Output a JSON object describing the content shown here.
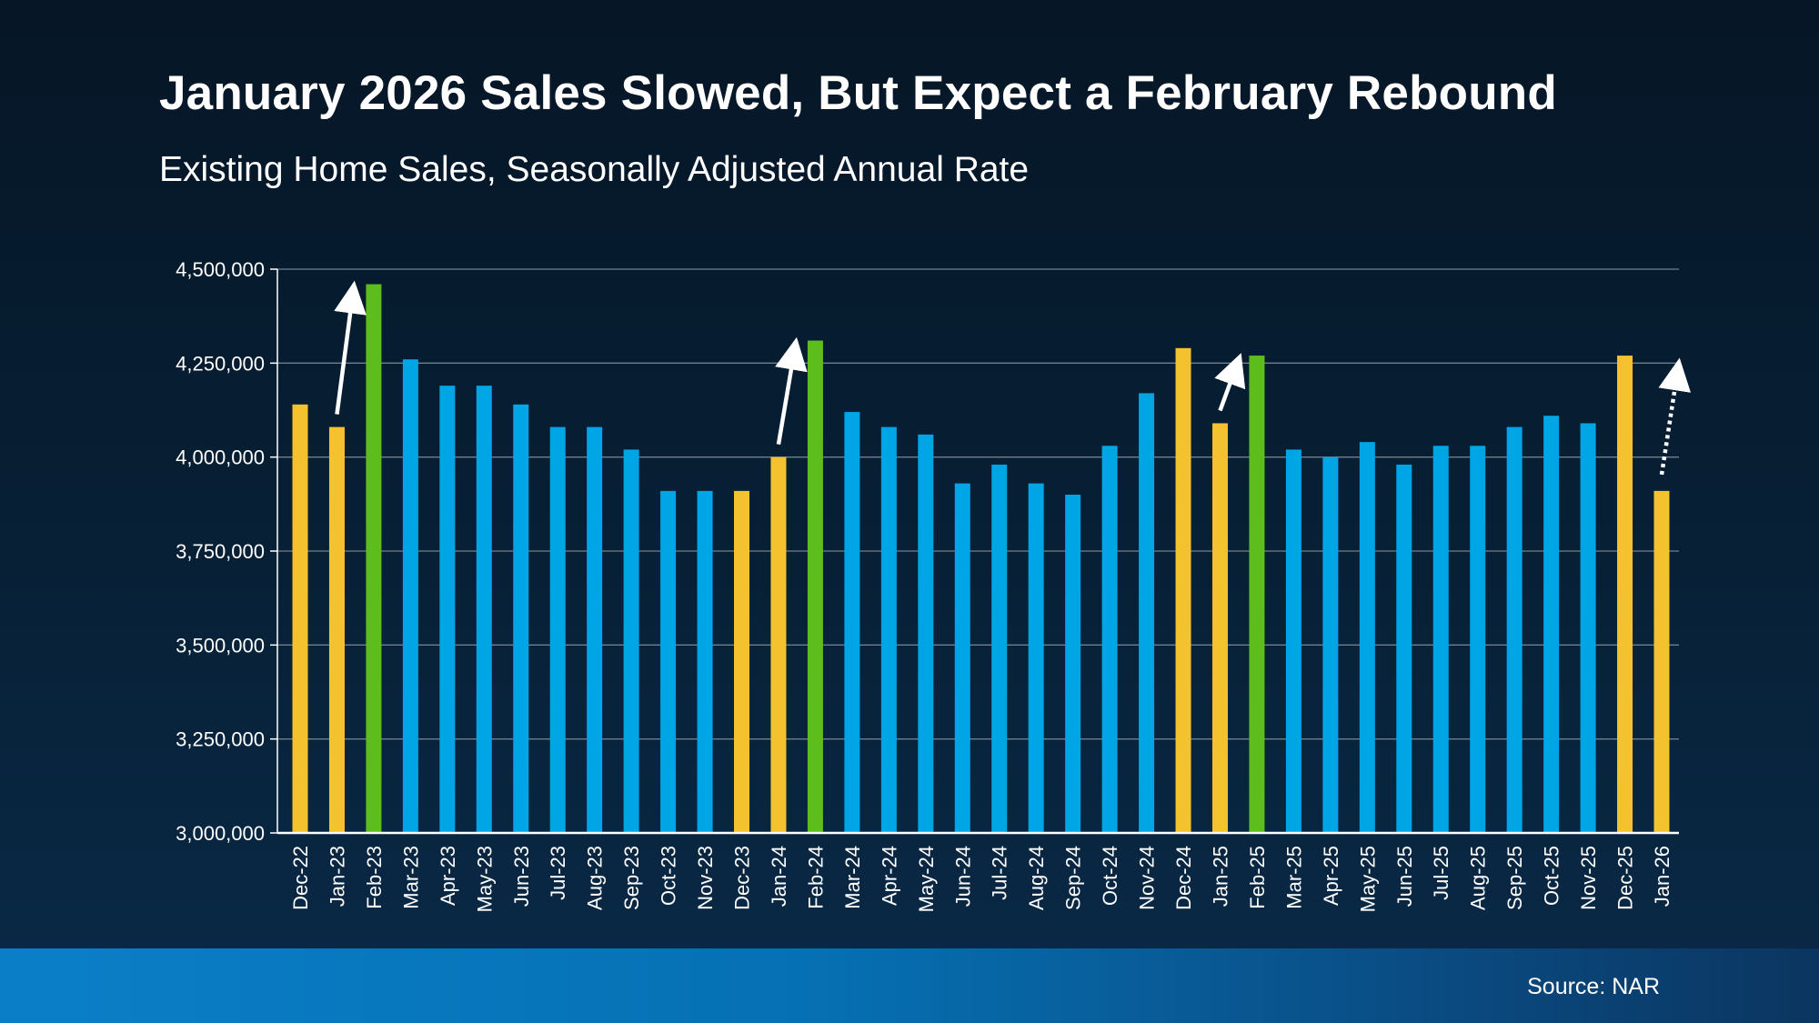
{
  "chart_data": {
    "type": "bar",
    "title": "January 2026 Sales Slowed, But Expect a February Rebound",
    "subtitle": "Existing Home Sales, Seasonally Adjusted Annual Rate",
    "xlabel": "",
    "ylabel": "",
    "ylim": [
      3000000,
      4500000
    ],
    "yticks": [
      3000000,
      3250000,
      3500000,
      3750000,
      4000000,
      4250000,
      4500000
    ],
    "ytick_labels": [
      "3,000,000",
      "3,250,000",
      "3,500,000",
      "3,750,000",
      "4,000,000",
      "4,250,000",
      "4,500,000"
    ],
    "grid": true,
    "categories": [
      "Dec-22",
      "Jan-23",
      "Feb-23",
      "Mar-23",
      "Apr-23",
      "May-23",
      "Jun-23",
      "Jul-23",
      "Aug-23",
      "Sep-23",
      "Oct-23",
      "Nov-23",
      "Dec-23",
      "Jan-24",
      "Feb-24",
      "Mar-24",
      "Apr-24",
      "May-24",
      "Jun-24",
      "Jul-24",
      "Aug-24",
      "Sep-24",
      "Oct-24",
      "Nov-24",
      "Dec-24",
      "Jan-25",
      "Feb-25",
      "Mar-25",
      "Apr-25",
      "May-25",
      "Jun-25",
      "Jul-25",
      "Aug-25",
      "Sep-25",
      "Oct-25",
      "Nov-25",
      "Dec-25",
      "Jan-26"
    ],
    "values": [
      4140000,
      4080000,
      4460000,
      4260000,
      4190000,
      4190000,
      4140000,
      4080000,
      4080000,
      4020000,
      3910000,
      3910000,
      3910000,
      4000000,
      4310000,
      4120000,
      4080000,
      4060000,
      3930000,
      3980000,
      3930000,
      3900000,
      4030000,
      4170000,
      4290000,
      4090000,
      4270000,
      4020000,
      4000000,
      4040000,
      3980000,
      4030000,
      4030000,
      4080000,
      4110000,
      4090000,
      4270000,
      3910000
    ],
    "bar_colors": [
      "yellow",
      "yellow",
      "green",
      "blue",
      "blue",
      "blue",
      "blue",
      "blue",
      "blue",
      "blue",
      "blue",
      "blue",
      "yellow",
      "yellow",
      "green",
      "blue",
      "blue",
      "blue",
      "blue",
      "blue",
      "blue",
      "blue",
      "blue",
      "blue",
      "yellow",
      "yellow",
      "green",
      "blue",
      "blue",
      "blue",
      "blue",
      "blue",
      "blue",
      "blue",
      "blue",
      "blue",
      "yellow",
      "yellow"
    ],
    "palette": {
      "yellow": "#f4c22e",
      "green": "#5dbd1c",
      "blue": "#00a5e5"
    },
    "arrows": [
      {
        "from": "Jan-23",
        "to": "Feb-23",
        "style": "solid"
      },
      {
        "from": "Jan-24",
        "to": "Feb-24",
        "style": "solid"
      },
      {
        "from": "Jan-25",
        "to": "Feb-25",
        "style": "solid"
      },
      {
        "from": "Jan-26",
        "to": "Feb-26 (expected)",
        "style": "dotted"
      }
    ]
  },
  "footer": {
    "source": "Source: NAR"
  }
}
